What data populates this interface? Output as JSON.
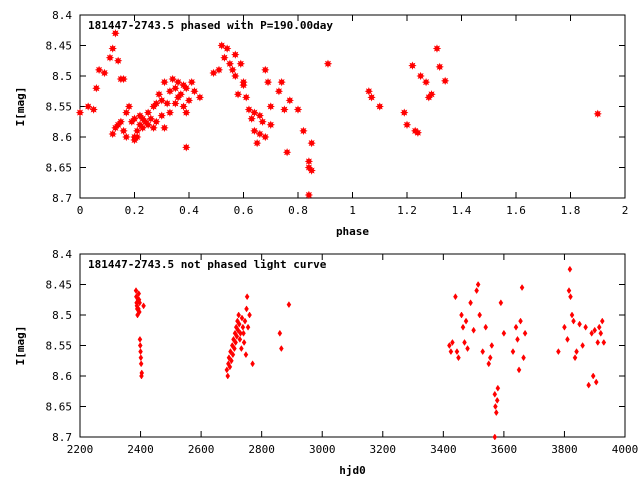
{
  "chart_data": [
    {
      "type": "scatter",
      "title": "181447-2743.5 phased with P=190.00day",
      "xlabel": "phase",
      "ylabel": "I[mag]",
      "xlim": [
        0,
        2
      ],
      "ylim": [
        8.4,
        8.7
      ],
      "y_inverted": true,
      "xticks": [
        "0",
        "0.2",
        "0.4",
        "0.6",
        "0.8",
        "1",
        "1.2",
        "1.4",
        "1.6",
        "1.8",
        "2"
      ],
      "yticks": [
        "8.4",
        "8.45",
        "8.5",
        "8.55",
        "8.6",
        "8.65",
        "8.7"
      ],
      "grid": false,
      "color": "#ff0000",
      "marker": "star",
      "series": [
        {
          "points": [
            [
              0.0,
              8.56
            ],
            [
              0.03,
              8.55
            ],
            [
              0.05,
              8.555
            ],
            [
              0.06,
              8.52
            ],
            [
              0.07,
              8.49
            ],
            [
              0.09,
              8.495
            ],
            [
              0.11,
              8.47
            ],
            [
              0.12,
              8.455
            ],
            [
              0.13,
              8.43
            ],
            [
              0.14,
              8.475
            ],
            [
              0.15,
              8.505
            ],
            [
              0.16,
              8.505
            ],
            [
              0.12,
              8.595
            ],
            [
              0.13,
              8.585
            ],
            [
              0.14,
              8.58
            ],
            [
              0.15,
              8.575
            ],
            [
              0.16,
              8.59
            ],
            [
              0.17,
              8.6
            ],
            [
              0.17,
              8.56
            ],
            [
              0.18,
              8.55
            ],
            [
              0.19,
              8.575
            ],
            [
              0.2,
              8.57
            ],
            [
              0.2,
              8.605
            ],
            [
              0.21,
              8.59
            ],
            [
              0.22,
              8.58
            ],
            [
              0.22,
              8.565
            ],
            [
              0.23,
              8.57
            ],
            [
              0.23,
              8.585
            ],
            [
              0.24,
              8.575
            ],
            [
              0.25,
              8.58
            ],
            [
              0.25,
              8.56
            ],
            [
              0.26,
              8.57
            ],
            [
              0.27,
              8.585
            ],
            [
              0.27,
              8.55
            ],
            [
              0.28,
              8.545
            ],
            [
              0.28,
              8.575
            ],
            [
              0.29,
              8.53
            ],
            [
              0.3,
              8.54
            ],
            [
              0.3,
              8.565
            ],
            [
              0.31,
              8.51
            ],
            [
              0.31,
              8.585
            ],
            [
              0.32,
              8.545
            ],
            [
              0.33,
              8.525
            ],
            [
              0.33,
              8.56
            ],
            [
              0.34,
              8.505
            ],
            [
              0.35,
              8.52
            ],
            [
              0.35,
              8.545
            ],
            [
              0.36,
              8.51
            ],
            [
              0.36,
              8.535
            ],
            [
              0.37,
              8.53
            ],
            [
              0.38,
              8.515
            ],
            [
              0.38,
              8.55
            ],
            [
              0.39,
              8.56
            ],
            [
              0.39,
              8.52
            ],
            [
              0.39,
              8.617
            ],
            [
              0.4,
              8.54
            ],
            [
              0.41,
              8.51
            ],
            [
              0.42,
              8.525
            ],
            [
              0.44,
              8.535
            ],
            [
              0.2,
              8.6
            ],
            [
              0.21,
              8.6
            ],
            [
              0.49,
              8.495
            ],
            [
              0.51,
              8.49
            ],
            [
              0.52,
              8.45
            ],
            [
              0.53,
              8.47
            ],
            [
              0.54,
              8.455
            ],
            [
              0.55,
              8.48
            ],
            [
              0.56,
              8.49
            ],
            [
              0.57,
              8.5
            ],
            [
              0.57,
              8.465
            ],
            [
              0.58,
              8.53
            ],
            [
              0.59,
              8.48
            ],
            [
              0.6,
              8.51
            ],
            [
              0.6,
              8.515
            ],
            [
              0.61,
              8.535
            ],
            [
              0.62,
              8.555
            ],
            [
              0.63,
              8.57
            ],
            [
              0.64,
              8.56
            ],
            [
              0.64,
              8.59
            ],
            [
              0.65,
              8.61
            ],
            [
              0.66,
              8.595
            ],
            [
              0.66,
              8.565
            ],
            [
              0.67,
              8.575
            ],
            [
              0.68,
              8.6
            ],
            [
              0.68,
              8.49
            ],
            [
              0.69,
              8.51
            ],
            [
              0.7,
              8.55
            ],
            [
              0.7,
              8.58
            ],
            [
              0.73,
              8.525
            ],
            [
              0.74,
              8.51
            ],
            [
              0.75,
              8.555
            ],
            [
              0.76,
              8.625
            ],
            [
              0.77,
              8.54
            ],
            [
              0.8,
              8.555
            ],
            [
              0.82,
              8.59
            ],
            [
              0.84,
              8.64
            ],
            [
              0.84,
              8.65
            ],
            [
              0.85,
              8.61
            ],
            [
              0.84,
              8.695
            ],
            [
              0.85,
              8.655
            ],
            [
              0.91,
              8.48
            ],
            [
              1.06,
              8.525
            ],
            [
              1.07,
              8.535
            ],
            [
              1.1,
              8.55
            ],
            [
              1.19,
              8.56
            ],
            [
              1.2,
              8.58
            ],
            [
              1.22,
              8.483
            ],
            [
              1.23,
              8.59
            ],
            [
              1.24,
              8.593
            ],
            [
              1.25,
              8.5
            ],
            [
              1.27,
              8.51
            ],
            [
              1.28,
              8.535
            ],
            [
              1.29,
              8.53
            ],
            [
              1.31,
              8.455
            ],
            [
              1.32,
              8.485
            ],
            [
              1.34,
              8.508
            ],
            [
              1.9,
              8.562
            ]
          ]
        }
      ]
    },
    {
      "type": "scatter",
      "title": "181447-2743.5 not phased light curve",
      "xlabel": "hjd0",
      "ylabel": "I[mag]",
      "xlim": [
        2200,
        4000
      ],
      "ylim": [
        8.4,
        8.7
      ],
      "y_inverted": true,
      "xticks": [
        "2200",
        "2400",
        "2600",
        "2800",
        "3000",
        "3200",
        "3400",
        "3600",
        "3800",
        "4000"
      ],
      "yticks": [
        "8.4",
        "8.45",
        "8.5",
        "8.55",
        "8.6",
        "8.65",
        "8.7"
      ],
      "grid": false,
      "color": "#ff0000",
      "marker": "diamond",
      "series": [
        {
          "points": [
            [
              2385,
              8.46
            ],
            [
              2386,
              8.47
            ],
            [
              2387,
              8.48
            ],
            [
              2388,
              8.485
            ],
            [
              2389,
              8.49
            ],
            [
              2390,
              8.5
            ],
            [
              2392,
              8.475
            ],
            [
              2393,
              8.49
            ],
            [
              2394,
              8.465
            ],
            [
              2395,
              8.475
            ],
            [
              2396,
              8.495
            ],
            [
              2397,
              8.48
            ],
            [
              2398,
              8.54
            ],
            [
              2399,
              8.55
            ],
            [
              2400,
              8.56
            ],
            [
              2401,
              8.57
            ],
            [
              2402,
              8.58
            ],
            [
              2403,
              8.6
            ],
            [
              2404,
              8.595
            ],
            [
              2410,
              8.485
            ],
            [
              2685,
              8.59
            ],
            [
              2688,
              8.6
            ],
            [
              2690,
              8.58
            ],
            [
              2692,
              8.57
            ],
            [
              2695,
              8.585
            ],
            [
              2697,
              8.56
            ],
            [
              2700,
              8.575
            ],
            [
              2703,
              8.55
            ],
            [
              2705,
              8.565
            ],
            [
              2707,
              8.54
            ],
            [
              2710,
              8.555
            ],
            [
              2712,
              8.53
            ],
            [
              2714,
              8.545
            ],
            [
              2716,
              8.52
            ],
            [
              2718,
              8.535
            ],
            [
              2720,
              8.51
            ],
            [
              2722,
              8.525
            ],
            [
              2724,
              8.5
            ],
            [
              2726,
              8.515
            ],
            [
              2728,
              8.54
            ],
            [
              2730,
              8.53
            ],
            [
              2733,
              8.555
            ],
            [
              2735,
              8.505
            ],
            [
              2738,
              8.52
            ],
            [
              2740,
              8.53
            ],
            [
              2742,
              8.545
            ],
            [
              2745,
              8.51
            ],
            [
              2748,
              8.565
            ],
            [
              2750,
              8.49
            ],
            [
              2752,
              8.47
            ],
            [
              2755,
              8.52
            ],
            [
              2760,
              8.5
            ],
            [
              2770,
              8.58
            ],
            [
              2860,
              8.53
            ],
            [
              2865,
              8.555
            ],
            [
              2890,
              8.483
            ],
            [
              3420,
              8.55
            ],
            [
              3425,
              8.56
            ],
            [
              3430,
              8.545
            ],
            [
              3440,
              8.47
            ],
            [
              3445,
              8.56
            ],
            [
              3450,
              8.57
            ],
            [
              3460,
              8.5
            ],
            [
              3465,
              8.52
            ],
            [
              3470,
              8.545
            ],
            [
              3475,
              8.51
            ],
            [
              3480,
              8.555
            ],
            [
              3490,
              8.48
            ],
            [
              3500,
              8.525
            ],
            [
              3510,
              8.46
            ],
            [
              3515,
              8.45
            ],
            [
              3520,
              8.5
            ],
            [
              3530,
              8.56
            ],
            [
              3540,
              8.52
            ],
            [
              3550,
              8.58
            ],
            [
              3555,
              8.57
            ],
            [
              3560,
              8.55
            ],
            [
              3570,
              8.63
            ],
            [
              3572,
              8.65
            ],
            [
              3575,
              8.66
            ],
            [
              3578,
              8.64
            ],
            [
              3570,
              8.7
            ],
            [
              3580,
              8.62
            ],
            [
              3590,
              8.48
            ],
            [
              3600,
              8.53
            ],
            [
              3630,
              8.56
            ],
            [
              3640,
              8.52
            ],
            [
              3645,
              8.54
            ],
            [
              3650,
              8.59
            ],
            [
              3655,
              8.51
            ],
            [
              3660,
              8.455
            ],
            [
              3665,
              8.57
            ],
            [
              3670,
              8.53
            ],
            [
              3780,
              8.56
            ],
            [
              3800,
              8.52
            ],
            [
              3810,
              8.54
            ],
            [
              3815,
              8.46
            ],
            [
              3818,
              8.425
            ],
            [
              3820,
              8.47
            ],
            [
              3825,
              8.5
            ],
            [
              3830,
              8.51
            ],
            [
              3835,
              8.57
            ],
            [
              3840,
              8.56
            ],
            [
              3850,
              8.515
            ],
            [
              3860,
              8.55
            ],
            [
              3870,
              8.52
            ],
            [
              3880,
              8.615
            ],
            [
              3890,
              8.53
            ],
            [
              3895,
              8.6
            ],
            [
              3900,
              8.525
            ],
            [
              3905,
              8.61
            ],
            [
              3910,
              8.545
            ],
            [
              3915,
              8.52
            ],
            [
              3920,
              8.53
            ],
            [
              3925,
              8.51
            ],
            [
              3930,
              8.545
            ]
          ]
        }
      ]
    }
  ]
}
